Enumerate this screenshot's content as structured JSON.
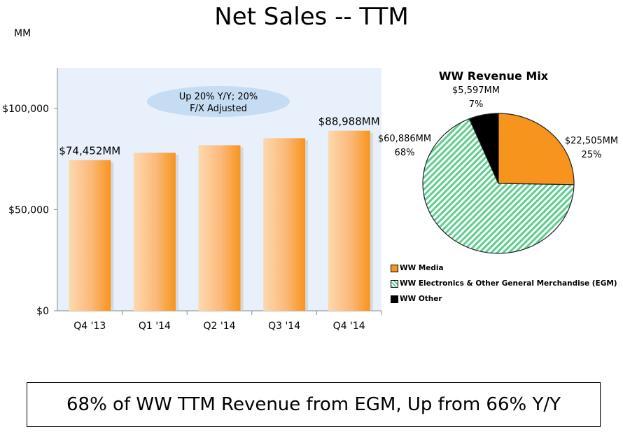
{
  "page": {
    "title": "Net Sales -- TTM",
    "unit": "MM",
    "footer": "68% of WW TTM Revenue from EGM, Up from 66% Y/Y"
  },
  "chart_data": [
    {
      "type": "bar",
      "categories": [
        "Q4 '13",
        "Q1 '14",
        "Q2 '14",
        "Q3 '14",
        "Q4 '14"
      ],
      "values": [
        74452,
        78100,
        81800,
        85300,
        88988
      ],
      "ylim": [
        0,
        120000
      ],
      "yticks": [
        0,
        50000,
        100000
      ],
      "ytick_labels": [
        "$0",
        "$50,000",
        "$100,000"
      ],
      "data_labels": [
        "$74,452MM",
        "",
        "",
        "",
        "$88,988MM"
      ],
      "annotation": [
        "Up 20% Y/Y; 20%",
        "F/X Adjusted"
      ],
      "colors": {
        "bar_light": "#fbd3a6",
        "bar_dark": "#f7941d",
        "plot_bg": "#e8f0fb",
        "callout": "#c5dcf2"
      }
    },
    {
      "type": "pie",
      "title": "WW Revenue Mix",
      "slices": [
        {
          "name": "WW Media",
          "value": 22505,
          "percent": 25,
          "label": "$22,505MM",
          "pct_label": "25%",
          "color": "#f7941d"
        },
        {
          "name": "WW Electronics & Other General Merchandise (EGM)",
          "value": 60886,
          "percent": 68,
          "label": "$60,886MM",
          "pct_label": "68%",
          "color": "#5ccf8e"
        },
        {
          "name": "WW Other",
          "value": 5597,
          "percent": 7,
          "label": "$5,597MM",
          "pct_label": "7%",
          "color": "#000000"
        }
      ]
    }
  ]
}
